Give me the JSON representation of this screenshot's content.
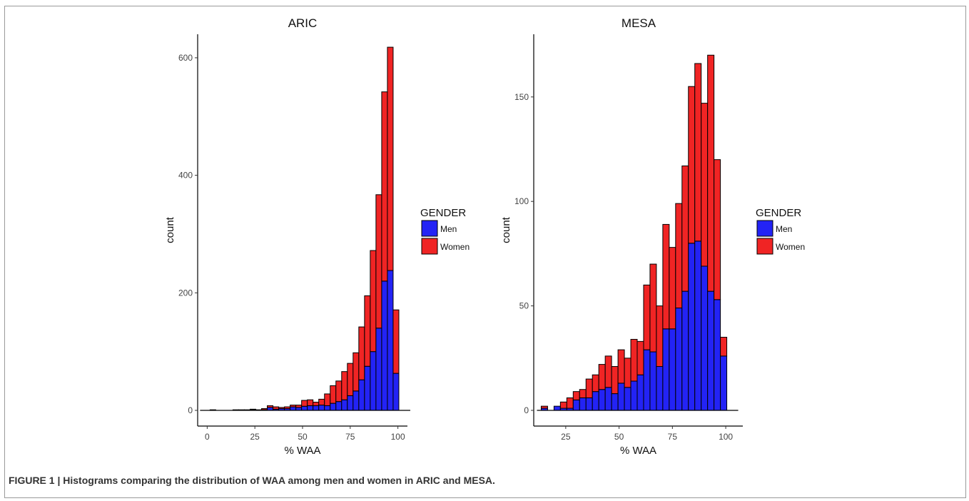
{
  "caption": "FIGURE 1 | Histograms comparing the distribution of WAA among men and women in ARIC and MESA.",
  "colors": {
    "men": "#2323f5",
    "women": "#f02424",
    "outline": "#000000"
  },
  "chart_data": [
    {
      "type": "bar",
      "stacked": true,
      "title": "ARIC",
      "xlabel": "% WAA",
      "ylabel": "count",
      "bin_width": 3,
      "xlim": [
        -5,
        105
      ],
      "ylim": [
        0,
        640
      ],
      "xticks": [
        0,
        25,
        50,
        75,
        100
      ],
      "xtick_labels": [
        "0",
        "25",
        "50",
        "75",
        "100"
      ],
      "yticks": [
        0,
        200,
        400,
        600
      ],
      "ytick_labels": [
        "0",
        "200",
        "400",
        "600"
      ],
      "grid": false,
      "legend": {
        "title": "GENDER",
        "position": "right",
        "entries": [
          "Men",
          "Women"
        ]
      },
      "bins": [
        0,
        3,
        6,
        9,
        12,
        15,
        18,
        21,
        24,
        27,
        30,
        33,
        36,
        39,
        42,
        45,
        48,
        51,
        54,
        57,
        60,
        63,
        66,
        69,
        72,
        75,
        78,
        81,
        84,
        87,
        90,
        93,
        96,
        99
      ],
      "series": [
        {
          "name": "Men",
          "values": [
            0,
            1,
            0,
            0,
            0,
            0,
            0,
            1,
            1,
            0,
            1,
            5,
            2,
            3,
            3,
            6,
            5,
            7,
            8,
            8,
            9,
            8,
            12,
            15,
            18,
            25,
            33,
            52,
            75,
            100,
            140,
            220,
            238,
            63
          ]
        },
        {
          "name": "Women",
          "values": [
            0,
            0,
            0,
            0,
            0,
            1,
            1,
            0,
            1,
            1,
            2,
            3,
            4,
            2,
            3,
            3,
            4,
            10,
            10,
            6,
            10,
            20,
            30,
            35,
            48,
            55,
            65,
            90,
            120,
            172,
            227,
            322,
            380,
            108
          ]
        }
      ]
    },
    {
      "type": "bar",
      "stacked": true,
      "title": "MESA",
      "xlabel": "% WAA",
      "ylabel": "count",
      "bin_width": 3,
      "xlim": [
        10,
        108
      ],
      "ylim": [
        0,
        180
      ],
      "xticks": [
        25,
        50,
        75,
        100
      ],
      "xtick_labels": [
        "25",
        "50",
        "75",
        "100"
      ],
      "yticks": [
        0,
        50,
        100,
        150
      ],
      "ytick_labels": [
        "0",
        "50",
        "100",
        "150"
      ],
      "grid": false,
      "legend": {
        "title": "GENDER",
        "position": "right",
        "entries": [
          "Men",
          "Women"
        ]
      },
      "bins": [
        15,
        18,
        21,
        24,
        27,
        30,
        33,
        36,
        39,
        42,
        45,
        48,
        51,
        54,
        57,
        60,
        63,
        66,
        69,
        72,
        75,
        78,
        81,
        84,
        87,
        90,
        93,
        96,
        99
      ],
      "series": [
        {
          "name": "Men",
          "values": [
            1,
            0,
            2,
            1,
            1,
            5,
            6,
            6,
            9,
            10,
            11,
            8,
            13,
            11,
            14,
            17,
            29,
            28,
            21,
            39,
            39,
            49,
            57,
            80,
            81,
            69,
            57,
            53,
            26
          ]
        },
        {
          "name": "Women",
          "values": [
            1,
            0,
            0,
            3,
            5,
            4,
            4,
            9,
            8,
            12,
            15,
            13,
            16,
            14,
            20,
            16,
            31,
            42,
            29,
            50,
            39,
            50,
            60,
            75,
            85,
            78,
            113,
            67,
            9
          ]
        }
      ]
    }
  ]
}
